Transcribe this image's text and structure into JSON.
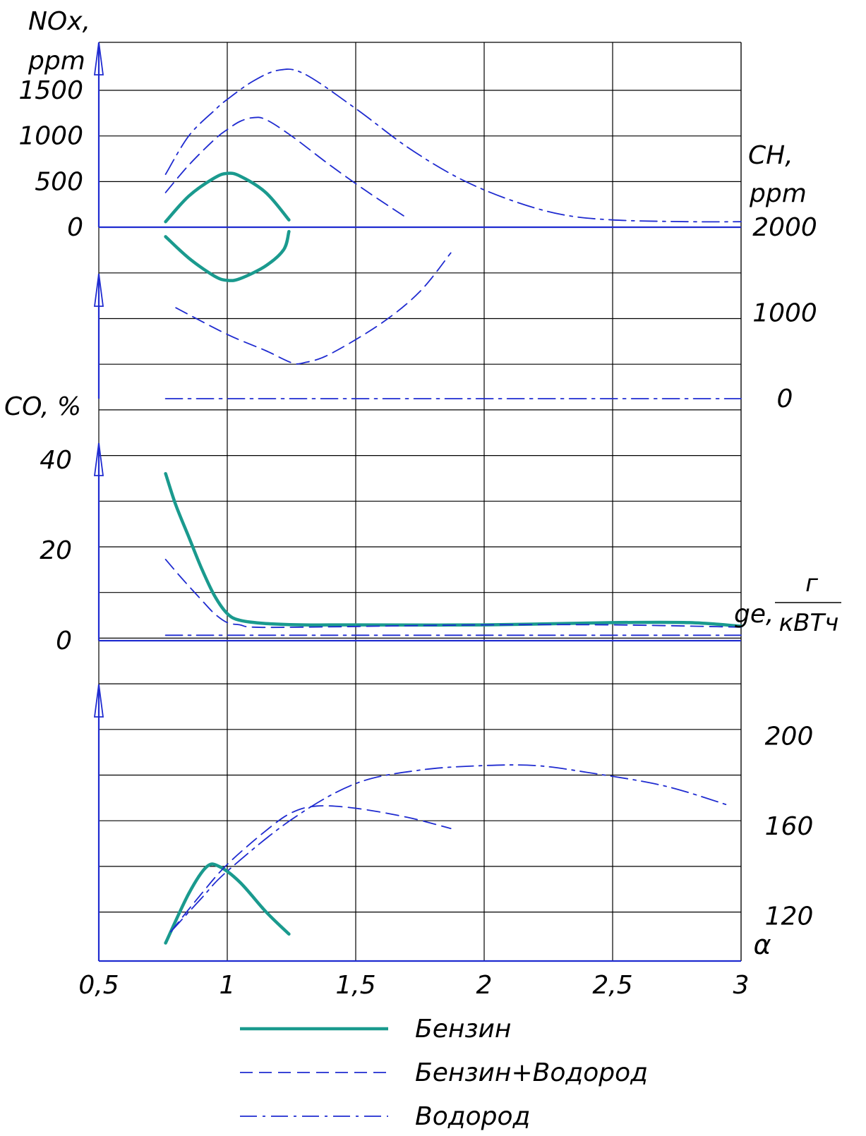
{
  "chart_data": {
    "type": "line",
    "x_axis": {
      "label": "α",
      "ticks": [
        "0,5",
        "1",
        "1,5",
        "2",
        "2,5",
        "3"
      ],
      "values": [
        0.5,
        1,
        1.5,
        2,
        2.5,
        3
      ],
      "range": [
        0.5,
        3
      ]
    },
    "grid": true,
    "legend_placement": "bottom",
    "series_styles": [
      {
        "name": "Бензин",
        "color": "#1a9a8e",
        "dash": "solid"
      },
      {
        "name": "Бензин+Водород",
        "color": "#1f2bd0",
        "dash": "dashed"
      },
      {
        "name": "Водород",
        "color": "#1f2bd0",
        "dash": "dashdot"
      }
    ],
    "panels": [
      {
        "id": "nox",
        "ylabel_line1": "NOx,",
        "ylabel_line2": "ppm",
        "tick_labels": [
          "1500",
          "1000",
          "500",
          "0"
        ],
        "tick_values": [
          1500,
          1000,
          500,
          0
        ],
        "ylim": [
          0,
          1950
        ],
        "series": [
          {
            "style": 0,
            "x": [
              0.76,
              0.85,
              0.95,
              1.0,
              1.05,
              1.15,
              1.24
            ],
            "y": [
              60,
              340,
              540,
              590,
              560,
              380,
              80
            ]
          },
          {
            "style": 1,
            "x": [
              0.76,
              0.85,
              0.95,
              1.0,
              1.05,
              1.1,
              1.15,
              1.25,
              1.4,
              1.55,
              1.7
            ],
            "y": [
              380,
              680,
              960,
              1070,
              1160,
              1200,
              1180,
              1000,
              680,
              380,
              100
            ]
          },
          {
            "style": 2,
            "x": [
              0.76,
              0.85,
              0.95,
              1.0,
              1.1,
              1.2,
              1.3,
              1.5,
              1.7,
              1.9,
              2.1,
              2.3,
              2.5,
              2.8,
              3.0
            ],
            "y": [
              580,
              1000,
              1280,
              1400,
              1600,
              1720,
              1680,
              1300,
              880,
              540,
              300,
              140,
              80,
              60,
              60
            ]
          }
        ]
      },
      {
        "id": "ch",
        "ylabel_line1": "CH,",
        "ylabel_line2": "ppm",
        "tick_labels": [
          "2000",
          "1000",
          "0"
        ],
        "tick_values": [
          2000,
          1000,
          0
        ],
        "ylim": [
          0,
          2000
        ],
        "series": [
          {
            "style": 0,
            "x": [
              0.76,
              0.85,
              0.95,
              1.0,
              1.05,
              1.15,
              1.22,
              1.24
            ],
            "y": [
              1890,
              1640,
              1430,
              1380,
              1400,
              1550,
              1740,
              1950
            ]
          },
          {
            "style": 1,
            "x": [
              0.8,
              1.0,
              1.15,
              1.25,
              1.3,
              1.4,
              1.6,
              1.75,
              1.87
            ],
            "y": [
              1060,
              750,
              560,
              420,
              420,
              520,
              880,
              1250,
              1700
            ]
          },
          {
            "style": 2,
            "x": [
              0.76,
              3.0
            ],
            "y": [
              0,
              0
            ]
          }
        ]
      },
      {
        "id": "co",
        "ylabel_line1": "CO, %",
        "tick_labels": [
          "40",
          "20",
          "0"
        ],
        "tick_values": [
          40,
          20,
          0
        ],
        "ylim": [
          0,
          50
        ],
        "series": [
          {
            "style": 0,
            "x": [
              0.76,
              0.8,
              0.85,
              0.9,
              0.95,
              1.0,
              1.05,
              1.15,
              1.3,
              1.5,
              2.0,
              2.5,
              2.8,
              3.0
            ],
            "y": [
              37,
              30,
              23,
              16,
              10,
              6,
              4.5,
              3.8,
              3.5,
              3.5,
              3.5,
              4,
              4,
              3.2
            ]
          },
          {
            "style": 1,
            "x": [
              0.76,
              0.82,
              0.9,
              0.95,
              1.0,
              1.05,
              1.1,
              1.3,
              2.0,
              2.5,
              3.0
            ],
            "y": [
              18,
              14,
              9,
              6,
              4,
              3.5,
              3,
              3,
              3.5,
              3.5,
              3
            ]
          },
          {
            "style": 2,
            "x": [
              0.76,
              3.0
            ],
            "y": [
              1.2,
              1.2
            ]
          }
        ]
      },
      {
        "id": "ge",
        "ylabel_prefix": "ge,",
        "ylabel_numerator": "г",
        "ylabel_denominator": "кВТч",
        "tick_labels": [
          "200",
          "160",
          "120"
        ],
        "tick_values": [
          200,
          160,
          120
        ],
        "ylim": [
          100,
          220
        ],
        "series": [
          {
            "style": 0,
            "x": [
              0.76,
              0.85,
              0.92,
              0.97,
              1.05,
              1.15,
              1.24
            ],
            "y": [
              108,
              130,
              142,
              142,
              135,
              122,
              112
            ]
          },
          {
            "style": 1,
            "x": [
              0.78,
              0.9,
              1.0,
              1.15,
              1.25,
              1.35,
              1.5,
              1.7,
              1.87
            ],
            "y": [
              113,
              130,
              143,
              158,
              166,
              169,
              168,
              164,
              159
            ]
          },
          {
            "style": 2,
            "x": [
              0.78,
              0.9,
              1.0,
              1.25,
              1.5,
              1.75,
              2.0,
              2.2,
              2.4,
              2.7,
              2.96
            ],
            "y": [
              113,
              128,
              140,
              163,
              179,
              185,
              187,
              187,
              184,
              178,
              169
            ]
          }
        ]
      }
    ],
    "legend": [
      "Бензин",
      "Бензин+Водород",
      "Водород"
    ]
  }
}
